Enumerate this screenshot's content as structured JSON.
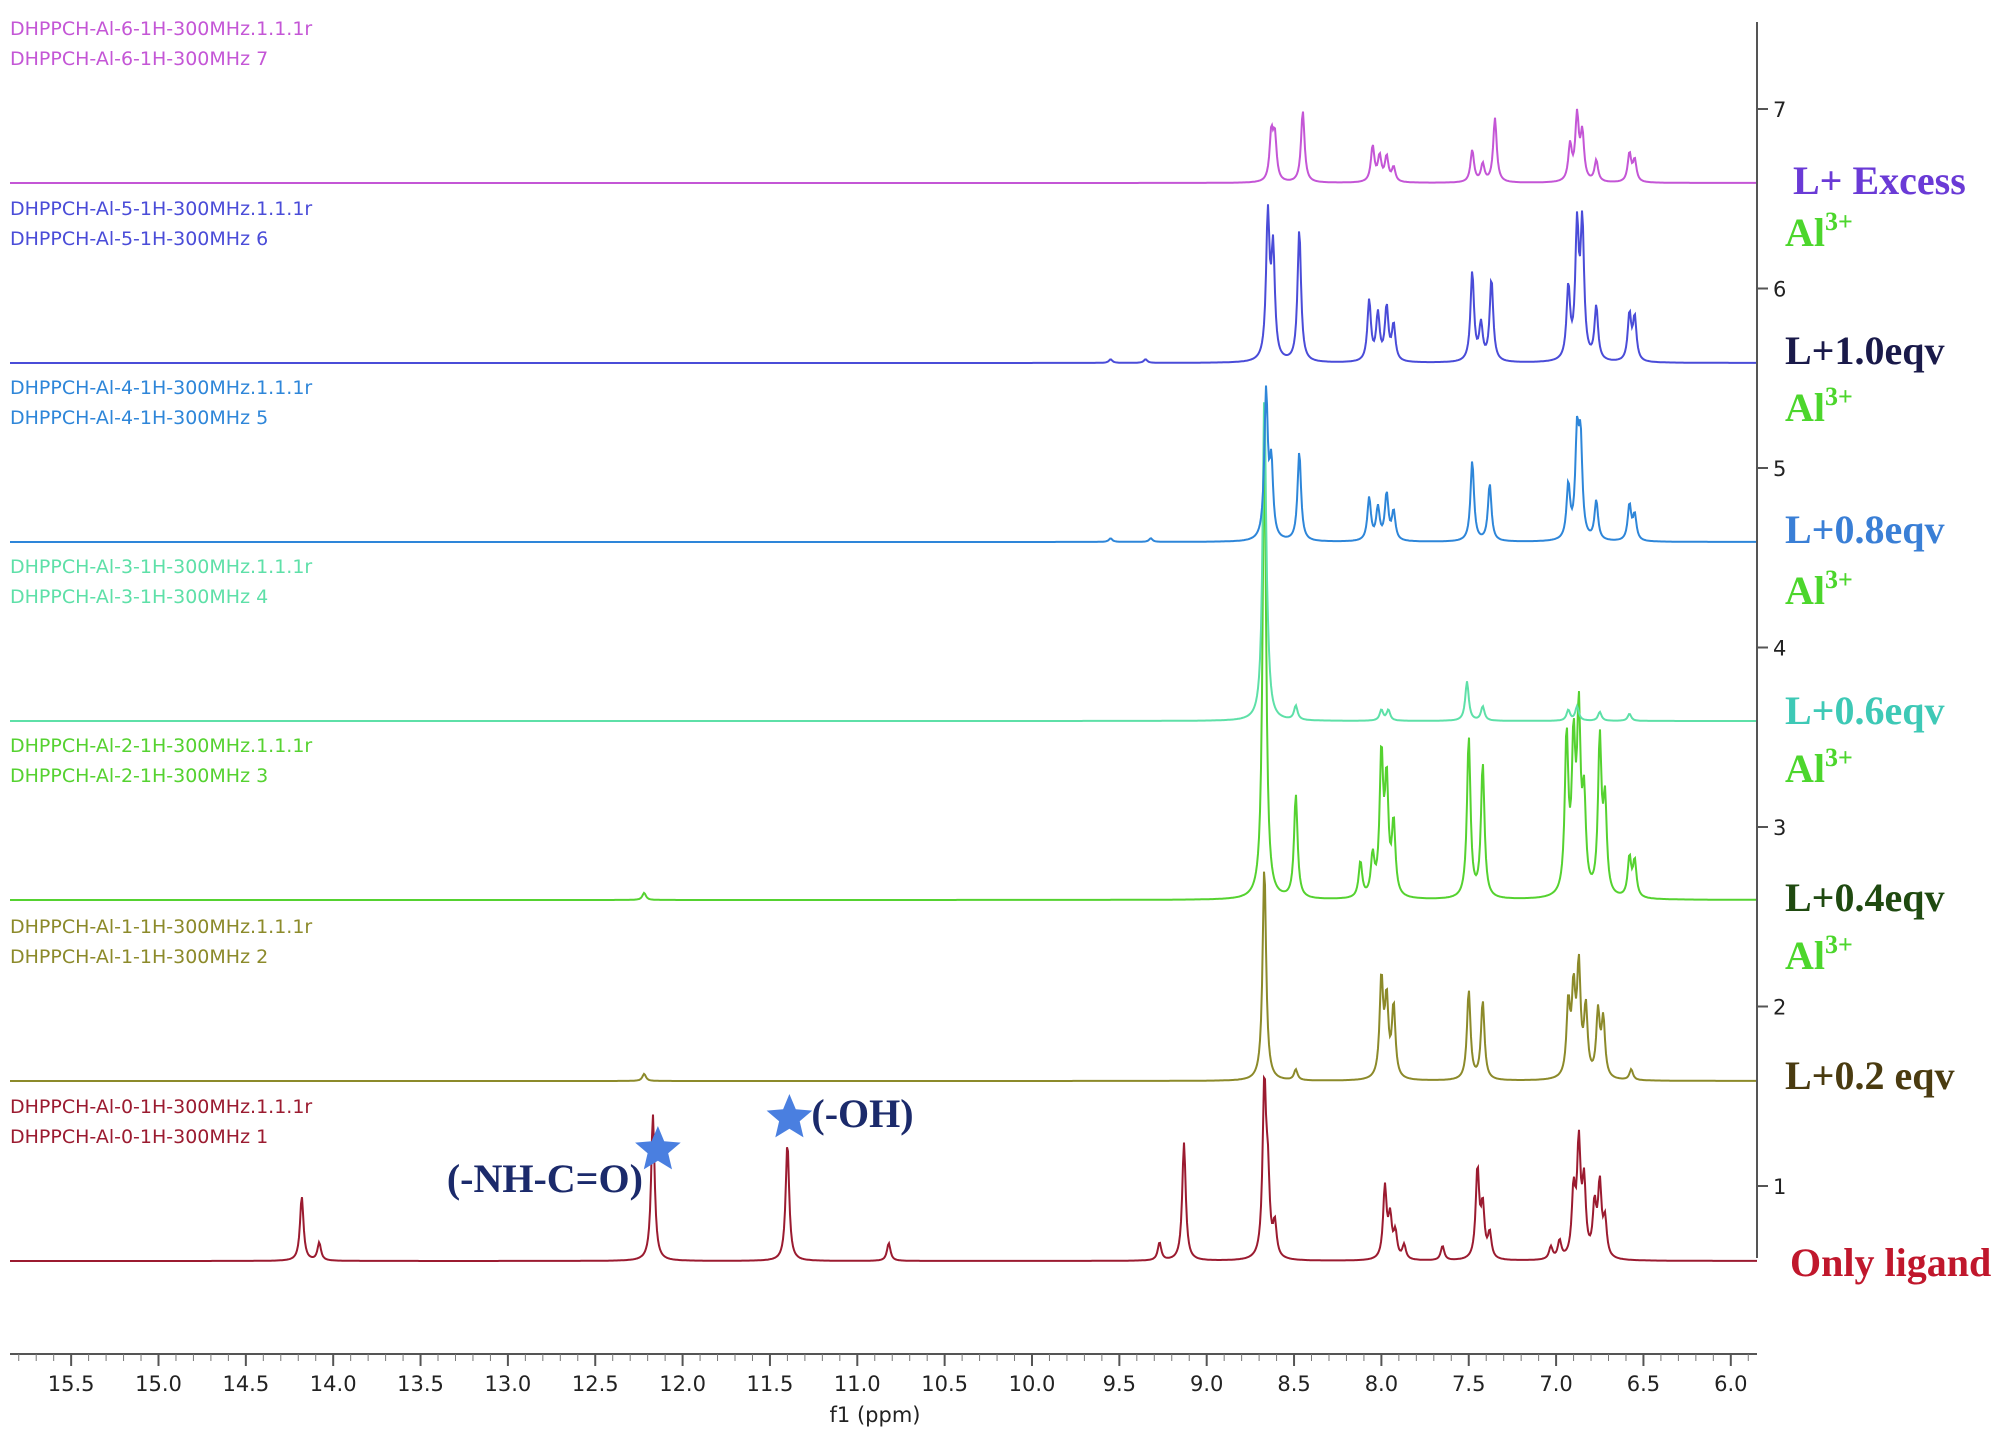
{
  "chart_data": {
    "type": "line",
    "xlabel": "f1 (ppm)",
    "x_ticks": [
      15.5,
      15.0,
      14.5,
      14.0,
      13.5,
      13.0,
      12.5,
      12.0,
      11.5,
      11.0,
      10.5,
      10.0,
      9.5,
      9.0,
      8.5,
      8.0,
      7.5,
      7.0,
      6.5,
      6.0
    ],
    "xlim": [
      15.85,
      5.85
    ],
    "x_reversed": true,
    "y_ticks": [
      1,
      2,
      3,
      4,
      5,
      6,
      7
    ],
    "grid": false,
    "series": [
      {
        "name1": "DHPPCH-Al-0-1H-300MHz.1.1.1r",
        "name2": "DHPPCH-Al-0-1H-300MHz 1",
        "label": "Only ligand",
        "al_label": "",
        "color": "#9b1b30",
        "label_color": "#c0172c",
        "peaks": [
          [
            14.18,
            0.36
          ],
          [
            14.08,
            0.1
          ],
          [
            12.17,
            0.82
          ],
          [
            11.4,
            0.66
          ],
          [
            10.82,
            0.1
          ],
          [
            9.27,
            0.1
          ],
          [
            9.13,
            0.66
          ],
          [
            8.67,
            0.95
          ],
          [
            8.65,
            0.4
          ],
          [
            8.61,
            0.18
          ],
          [
            7.98,
            0.4
          ],
          [
            7.95,
            0.22
          ],
          [
            7.92,
            0.14
          ],
          [
            7.87,
            0.08
          ],
          [
            7.65,
            0.08
          ],
          [
            7.45,
            0.5
          ],
          [
            7.42,
            0.28
          ],
          [
            7.38,
            0.14
          ],
          [
            7.03,
            0.07
          ],
          [
            6.98,
            0.1
          ],
          [
            6.9,
            0.36
          ],
          [
            6.87,
            0.62
          ],
          [
            6.84,
            0.4
          ],
          [
            6.78,
            0.28
          ],
          [
            6.75,
            0.4
          ],
          [
            6.72,
            0.2
          ]
        ]
      },
      {
        "name1": "DHPPCH-Al-1-1H-300MHz.1.1.1r",
        "name2": "DHPPCH-Al-1-1H-300MHz 2",
        "label": "L+0.2 eqv",
        "al_label": "Al3+",
        "color": "#8c8a2a",
        "label_color": "#4a3b10",
        "peaks": [
          [
            12.22,
            0.04
          ],
          [
            8.67,
            1.2
          ],
          [
            8.49,
            0.06
          ],
          [
            8.0,
            0.55
          ],
          [
            7.97,
            0.42
          ],
          [
            7.93,
            0.4
          ],
          [
            7.5,
            0.5
          ],
          [
            7.42,
            0.44
          ],
          [
            6.93,
            0.4
          ],
          [
            6.9,
            0.46
          ],
          [
            6.87,
            0.6
          ],
          [
            6.83,
            0.38
          ],
          [
            6.76,
            0.36
          ],
          [
            6.73,
            0.32
          ],
          [
            6.57,
            0.06
          ]
        ]
      },
      {
        "name1": "DHPPCH-Al-2-1H-300MHz.1.1.1r",
        "name2": "DHPPCH-Al-2-1H-300MHz 3",
        "label": "L+0.4eqv",
        "al_label": "Al3+",
        "color": "#55d230",
        "label_color": "#1f4a10",
        "peaks": [
          [
            12.22,
            0.04
          ],
          [
            8.67,
            2.6
          ],
          [
            8.49,
            0.58
          ],
          [
            8.12,
            0.2
          ],
          [
            8.05,
            0.22
          ],
          [
            8.0,
            0.78
          ],
          [
            7.97,
            0.62
          ],
          [
            7.93,
            0.4
          ],
          [
            7.5,
            0.9
          ],
          [
            7.42,
            0.75
          ],
          [
            6.94,
            0.88
          ],
          [
            6.9,
            0.8
          ],
          [
            6.87,
            0.96
          ],
          [
            6.84,
            0.5
          ],
          [
            6.75,
            0.86
          ],
          [
            6.72,
            0.5
          ],
          [
            6.58,
            0.22
          ],
          [
            6.55,
            0.2
          ]
        ]
      },
      {
        "name1": "DHPPCH-Al-3-1H-300MHz.1.1.1r",
        "name2": "DHPPCH-Al-3-1H-300MHz 4",
        "label": "L+0.6eqv",
        "al_label": "Al3+",
        "color": "#5ee0a8",
        "label_color": "#3ec9b6",
        "peaks": [
          [
            8.67,
            1.8
          ],
          [
            8.65,
            0.12
          ],
          [
            8.49,
            0.08
          ],
          [
            8.0,
            0.06
          ],
          [
            7.96,
            0.06
          ],
          [
            7.51,
            0.22
          ],
          [
            7.42,
            0.08
          ],
          [
            6.93,
            0.06
          ],
          [
            6.88,
            0.08
          ],
          [
            6.75,
            0.05
          ],
          [
            6.58,
            0.04
          ]
        ]
      },
      {
        "name1": "DHPPCH-Al-4-1H-300MHz.1.1.1r",
        "name2": "DHPPCH-Al-4-1H-300MHz 5",
        "label": "L+0.8eqv",
        "al_label": "Al3+",
        "color": "#2e86d9",
        "label_color": "#3a7fd6",
        "peaks": [
          [
            9.55,
            0.02
          ],
          [
            9.32,
            0.02
          ],
          [
            8.66,
            0.82
          ],
          [
            8.63,
            0.4
          ],
          [
            8.47,
            0.5
          ],
          [
            8.07,
            0.24
          ],
          [
            8.02,
            0.18
          ],
          [
            7.97,
            0.26
          ],
          [
            7.93,
            0.16
          ],
          [
            7.48,
            0.45
          ],
          [
            7.38,
            0.32
          ],
          [
            6.93,
            0.3
          ],
          [
            6.88,
            0.55
          ],
          [
            6.86,
            0.52
          ],
          [
            6.77,
            0.22
          ],
          [
            6.58,
            0.2
          ],
          [
            6.55,
            0.14
          ]
        ]
      },
      {
        "name1": "DHPPCH-Al-5-1H-300MHz.1.1.1r",
        "name2": "DHPPCH-Al-5-1H-300MHz 6",
        "label": "L+1.0eqv",
        "al_label": "Al3+",
        "color": "#4a4cd8",
        "label_color": "#1a1a4a",
        "peaks": [
          [
            9.55,
            0.02
          ],
          [
            9.35,
            0.02
          ],
          [
            8.65,
            0.8
          ],
          [
            8.62,
            0.6
          ],
          [
            8.47,
            0.74
          ],
          [
            8.07,
            0.34
          ],
          [
            8.02,
            0.26
          ],
          [
            7.97,
            0.3
          ],
          [
            7.93,
            0.2
          ],
          [
            7.48,
            0.5
          ],
          [
            7.43,
            0.2
          ],
          [
            7.37,
            0.46
          ],
          [
            6.93,
            0.4
          ],
          [
            6.88,
            0.72
          ],
          [
            6.85,
            0.74
          ],
          [
            6.77,
            0.3
          ],
          [
            6.58,
            0.26
          ],
          [
            6.55,
            0.24
          ]
        ]
      },
      {
        "name1": "DHPPCH-Al-6-1H-300MHz.1.1.1r",
        "name2": "DHPPCH-Al-6-1H-300MHz 7",
        "label": "L+ Excess",
        "al_label": "Al3+",
        "color": "#c456d6",
        "label_color": "#6a3ad6",
        "peaks": [
          [
            8.63,
            0.26
          ],
          [
            8.61,
            0.24
          ],
          [
            8.45,
            0.4
          ],
          [
            8.05,
            0.2
          ],
          [
            8.01,
            0.14
          ],
          [
            7.97,
            0.14
          ],
          [
            7.93,
            0.08
          ],
          [
            7.48,
            0.18
          ],
          [
            7.42,
            0.1
          ],
          [
            7.35,
            0.36
          ],
          [
            6.92,
            0.2
          ],
          [
            6.88,
            0.36
          ],
          [
            6.85,
            0.26
          ],
          [
            6.77,
            0.12
          ],
          [
            6.58,
            0.16
          ],
          [
            6.55,
            0.12
          ]
        ]
      }
    ],
    "annotations": [
      {
        "text": "(-NH-C=O)",
        "x": 12.17
      },
      {
        "text": "(-OH)",
        "x": 11.4
      }
    ]
  }
}
